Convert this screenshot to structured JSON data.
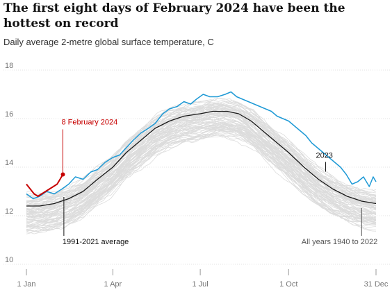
{
  "header": {
    "title": "The first eight days of February 2024 have been the hottest on record",
    "subtitle": "Daily average 2-metre global surface temperature, C"
  },
  "annotations": {
    "feb2024": "8 February 2024",
    "y2023": "2023",
    "average": "1991-2021 average",
    "allyears": "All years 1940 to 2022"
  },
  "colors": {
    "background_years": "#dcdcdc",
    "year_2023": "#1f9ad6",
    "year_2024": "#c70000",
    "average": "#1a1a1a",
    "grid": "#e3e3e3"
  },
  "chart_data": {
    "type": "line",
    "title": "The first eight days of February 2024 have been the hottest on record",
    "subtitle": "Daily average 2-metre global surface temperature, C",
    "x_axis": {
      "unit": "day of year",
      "range": [
        1,
        365
      ],
      "ticks": [
        {
          "label": "1 Jan",
          "day": 1
        },
        {
          "label": "1 Apr",
          "day": 91
        },
        {
          "label": "1 Jul",
          "day": 182
        },
        {
          "label": "1 Oct",
          "day": 274
        },
        {
          "label": "31 Dec",
          "day": 365
        }
      ]
    },
    "y_axis": {
      "range": [
        10,
        18
      ],
      "ticks": [
        10,
        12,
        14,
        16,
        18
      ],
      "grid": true
    },
    "series": [
      {
        "name": "1991-2021 average",
        "points": [
          [
            1,
            12.4
          ],
          [
            15,
            12.4
          ],
          [
            30,
            12.5
          ],
          [
            45,
            12.7
          ],
          [
            60,
            13.0
          ],
          [
            75,
            13.5
          ],
          [
            91,
            14.0
          ],
          [
            105,
            14.6
          ],
          [
            120,
            15.1
          ],
          [
            135,
            15.6
          ],
          [
            150,
            15.9
          ],
          [
            165,
            16.1
          ],
          [
            182,
            16.2
          ],
          [
            195,
            16.3
          ],
          [
            210,
            16.3
          ],
          [
            222,
            16.2
          ],
          [
            235,
            15.9
          ],
          [
            250,
            15.4
          ],
          [
            265,
            14.9
          ],
          [
            274,
            14.6
          ],
          [
            290,
            14.0
          ],
          [
            305,
            13.5
          ],
          [
            320,
            13.1
          ],
          [
            335,
            12.8
          ],
          [
            350,
            12.6
          ],
          [
            365,
            12.5
          ]
        ]
      },
      {
        "name": "2023",
        "points": [
          [
            1,
            12.9
          ],
          [
            8,
            12.7
          ],
          [
            15,
            12.8
          ],
          [
            22,
            13.0
          ],
          [
            30,
            12.9
          ],
          [
            38,
            13.1
          ],
          [
            45,
            13.3
          ],
          [
            52,
            13.6
          ],
          [
            60,
            13.5
          ],
          [
            68,
            13.8
          ],
          [
            75,
            13.9
          ],
          [
            83,
            14.2
          ],
          [
            91,
            14.4
          ],
          [
            98,
            14.5
          ],
          [
            105,
            14.8
          ],
          [
            112,
            15.1
          ],
          [
            120,
            15.4
          ],
          [
            128,
            15.6
          ],
          [
            135,
            15.8
          ],
          [
            143,
            16.2
          ],
          [
            150,
            16.4
          ],
          [
            158,
            16.5
          ],
          [
            165,
            16.7
          ],
          [
            172,
            16.6
          ],
          [
            178,
            16.8
          ],
          [
            185,
            17.0
          ],
          [
            192,
            16.9
          ],
          [
            200,
            16.9
          ],
          [
            208,
            17.0
          ],
          [
            214,
            17.1
          ],
          [
            220,
            16.9
          ],
          [
            226,
            16.8
          ],
          [
            232,
            16.7
          ],
          [
            238,
            16.6
          ],
          [
            244,
            16.5
          ],
          [
            250,
            16.4
          ],
          [
            256,
            16.3
          ],
          [
            262,
            16.1
          ],
          [
            268,
            16.0
          ],
          [
            274,
            15.9
          ],
          [
            280,
            15.7
          ],
          [
            286,
            15.5
          ],
          [
            292,
            15.3
          ],
          [
            298,
            15.0
          ],
          [
            304,
            14.8
          ],
          [
            310,
            14.6
          ],
          [
            316,
            14.4
          ],
          [
            322,
            14.2
          ],
          [
            328,
            14.0
          ],
          [
            334,
            13.7
          ],
          [
            340,
            13.3
          ],
          [
            346,
            13.4
          ],
          [
            352,
            13.6
          ],
          [
            358,
            13.2
          ],
          [
            362,
            13.6
          ],
          [
            365,
            13.4
          ]
        ]
      },
      {
        "name": "2024",
        "points": [
          [
            1,
            13.3
          ],
          [
            5,
            13.1
          ],
          [
            9,
            12.9
          ],
          [
            13,
            12.8
          ],
          [
            17,
            12.9
          ],
          [
            21,
            13.0
          ],
          [
            25,
            13.1
          ],
          [
            29,
            13.2
          ],
          [
            33,
            13.3
          ],
          [
            36,
            13.5
          ],
          [
            39,
            13.7
          ]
        ]
      }
    ],
    "background_series": {
      "label": "All years 1940 to 2022",
      "count": 83,
      "offset_range_vs_average": [
        -1.0,
        0.4
      ]
    },
    "annotations": [
      {
        "text": "8 February 2024",
        "x": 39,
        "y": 13.7
      },
      {
        "text": "2023",
        "x": 340,
        "y": 13.3
      },
      {
        "text": "1991-2021 average",
        "x": 40,
        "y": 12.6
      },
      {
        "text": "All years 1940 to 2022",
        "x": 350,
        "y": 12.6
      }
    ]
  }
}
